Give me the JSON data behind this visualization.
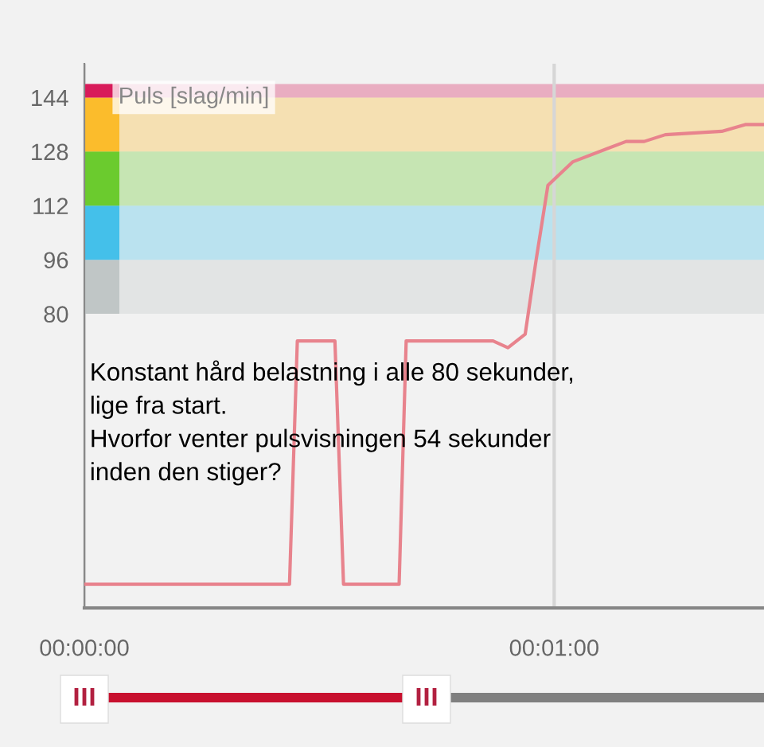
{
  "chart_data": {
    "type": "line",
    "ylabel": "Puls [slag/min]",
    "annotations": [
      "Konstant hård belastning i alle 80 sekunder,\nlige fra start.\nHvorfor venter pulsvisningen 54 sekunder\ninden den stiger?"
    ],
    "x": [
      0,
      26.2,
      27.2,
      32.0,
      33.1,
      40.2,
      41.1,
      52.2,
      54.1,
      56.3,
      57.7,
      59.2,
      62.4,
      69.2,
      71.5,
      74.2,
      81.4,
      84.4,
      86.8
    ],
    "series": [
      {
        "color": "#e8838d",
        "values": [
          0,
          0,
          72,
          72,
          0,
          0,
          72,
          72,
          70,
          74,
          96,
          118,
          125,
          131,
          131,
          133,
          134,
          136,
          136
        ]
      }
    ],
    "xlim": [
      0,
      86.8
    ],
    "ylim": [
      -7,
      154
    ],
    "xticks": [
      {
        "value": 0,
        "label": "00:00:00"
      },
      {
        "value": 60,
        "label": "00:01:00"
      }
    ],
    "yticks": [
      80,
      96,
      112,
      128,
      144
    ],
    "grid": "x",
    "marker": "none",
    "line_style": "solid",
    "bands": [
      {
        "axis": "y",
        "from": 80,
        "to": 96,
        "color": "#c0c6c6"
      },
      {
        "axis": "y",
        "from": 96,
        "to": 112,
        "color": "#44c0ea"
      },
      {
        "axis": "y",
        "from": 112,
        "to": 128,
        "color": "#6bcb2e"
      },
      {
        "axis": "y",
        "from": 128,
        "to": 144,
        "color": "#fbbc2c"
      },
      {
        "axis": "y",
        "from": 144,
        "to": 148,
        "color": "#d81b5a"
      }
    ]
  }
}
